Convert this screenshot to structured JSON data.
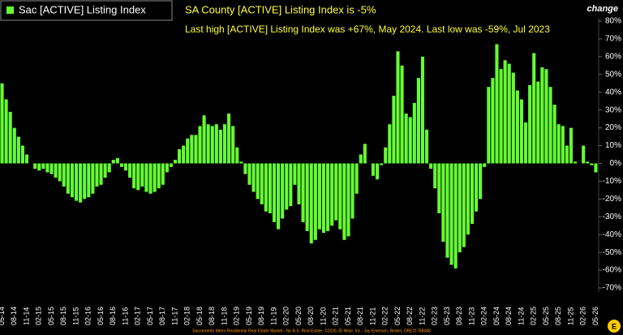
{
  "chart_data": {
    "type": "bar",
    "title": "SA County [ACTIVE] Listing Index is -5%",
    "subtitle": "Last high [ACTIVE] Listing Index was +67%, May 2024. Last low was -59%, Jul 2023",
    "y_label": "change",
    "source": "Sacramento Metro Residential Real Estate Market - No B.S. Real Estate, ©2026 JD Wise, Inc - Jay Emerson, Broker, DRE#1788488",
    "categories": [
      "05-14",
      null,
      null,
      "08-14",
      null,
      null,
      "11-14",
      null,
      null,
      "02-15",
      null,
      null,
      "05-15",
      null,
      null,
      "08-15",
      null,
      null,
      "11-15",
      null,
      null,
      "02-16",
      null,
      null,
      "05-16",
      null,
      null,
      "08-16",
      null,
      null,
      "11-16",
      null,
      null,
      "02-17",
      null,
      null,
      "05-17",
      null,
      null,
      "08-17",
      null,
      null,
      "11-17",
      null,
      null,
      "02-18",
      null,
      null,
      "05-18",
      null,
      null,
      "08-18",
      null,
      null,
      "11-18",
      null,
      null,
      "02-19",
      null,
      null,
      "05-19",
      null,
      null,
      "08-19",
      null,
      null,
      "11-19",
      null,
      null,
      "02-20",
      null,
      null,
      "05-20",
      null,
      null,
      "08-20",
      null,
      null,
      "11-20",
      null,
      null,
      "02-21",
      null,
      null,
      "05-21",
      null,
      null,
      "08-21",
      null,
      null,
      "11-21",
      null,
      null,
      "02-22",
      null,
      null,
      "05-22",
      null,
      null,
      "08-22",
      null,
      null,
      "11-22",
      null,
      null,
      "02-23",
      null,
      null,
      "05-23",
      null,
      null,
      "08-23",
      null,
      null,
      "11-23",
      null,
      null,
      "02-24",
      null,
      null,
      "05-24",
      null,
      null,
      "08-24",
      null,
      null,
      "11-24",
      null,
      null,
      "02-25",
      null,
      null,
      "05-25",
      null,
      null,
      "08-25",
      null,
      null,
      "11-25",
      null,
      null,
      "02-26",
      null,
      null,
      "05-26"
    ],
    "series": [
      {
        "name": "Sac [ACTIVE] Listing Index",
        "color": "#66ff33",
        "values": [
          45,
          36,
          29,
          20,
          15,
          10,
          5,
          0,
          -3,
          -4,
          -3,
          -5,
          -6,
          -8,
          -10,
          -13,
          -17,
          -19,
          -21,
          -22,
          -20,
          -19,
          -17,
          -13,
          -12,
          -8,
          -5,
          2,
          3,
          -2,
          -4,
          -8,
          -14,
          -15,
          -13,
          -16,
          -17,
          -16,
          -14,
          -12,
          -5,
          -2,
          2,
          8,
          10,
          14,
          16,
          16,
          21,
          27,
          22,
          21,
          22,
          19,
          22,
          28,
          21,
          9,
          1,
          -6,
          -12,
          -16,
          -20,
          -23,
          -27,
          -28,
          -33,
          -37,
          -31,
          -26,
          -24,
          -12,
          -23,
          -33,
          -38,
          -45,
          -43,
          -37,
          -39,
          -38,
          -35,
          -32,
          -37,
          -43,
          -41,
          -31,
          -17,
          5,
          11,
          0,
          -7,
          -9,
          -1,
          9,
          22,
          38,
          63,
          55,
          28,
          26,
          34,
          48,
          60,
          19,
          -3,
          -14,
          -28,
          -44,
          -53,
          -57,
          -59,
          -50,
          -47,
          -40,
          -34,
          -27,
          -20,
          -2,
          43,
          48,
          67,
          53,
          58,
          56,
          51,
          41,
          36,
          23,
          44,
          62,
          46,
          54,
          53,
          43,
          33,
          22,
          21,
          10,
          20,
          1,
          0,
          10,
          1,
          -1,
          -5
        ]
      }
    ],
    "ylim": [
      -70,
      80
    ],
    "yticks": [
      {
        "value": 80,
        "label": "80%"
      },
      {
        "value": 70,
        "label": "70%"
      },
      {
        "value": 60,
        "label": "60%"
      },
      {
        "value": 50,
        "label": "50%"
      },
      {
        "value": 40,
        "label": "40%"
      },
      {
        "value": 30,
        "label": "30%"
      },
      {
        "value": 20,
        "label": "20%"
      },
      {
        "value": 10,
        "label": "10%"
      },
      {
        "value": 0,
        "label": "0%"
      },
      {
        "value": -10,
        "label": "-10%"
      },
      {
        "value": -20,
        "label": "-20%"
      },
      {
        "value": -30,
        "label": "-30%"
      },
      {
        "value": -40,
        "label": "-40%"
      },
      {
        "value": -50,
        "label": "-50%"
      },
      {
        "value": -60,
        "label": "-60%"
      },
      {
        "value": -70,
        "label": "-70%"
      }
    ],
    "grid": false
  }
}
